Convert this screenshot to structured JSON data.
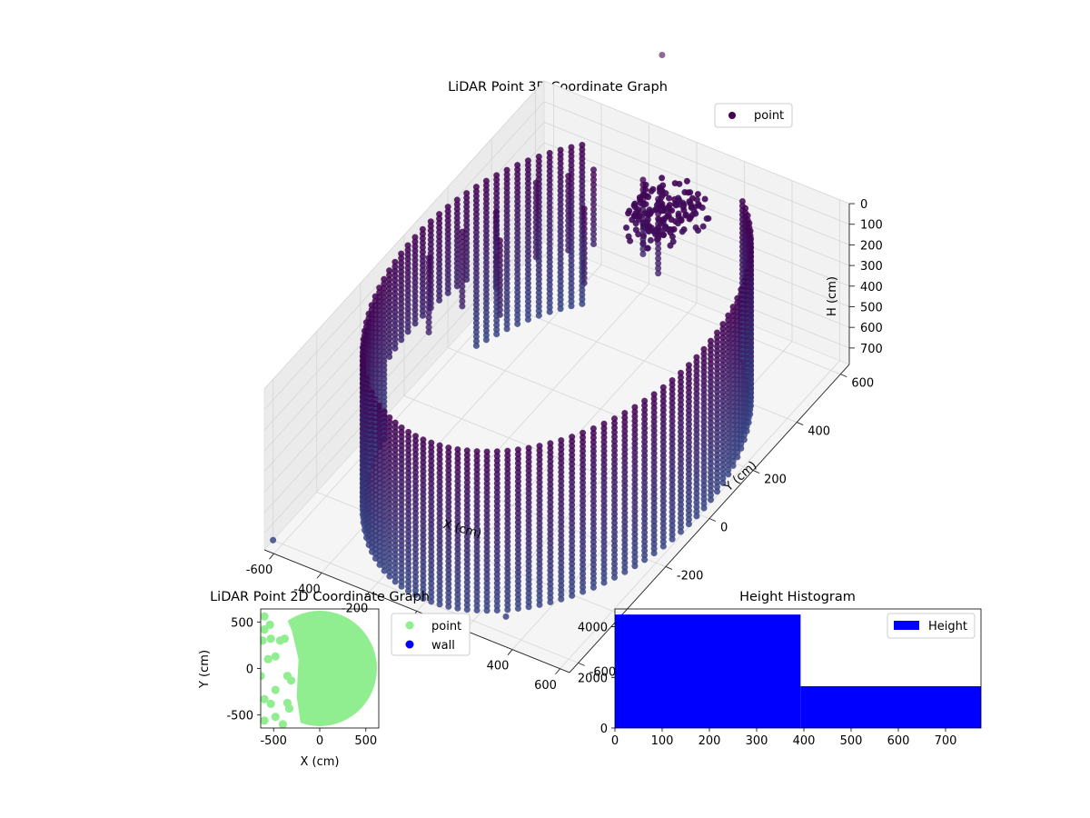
{
  "chart_data": [
    {
      "type": "scatter",
      "projection": "3d",
      "title": "LiDAR Point 3D Coordinate Graph",
      "xlabel": "X (cm)",
      "ylabel": "Y (cm)",
      "zlabel": "H (cm)",
      "x_ticks": [
        -600,
        -400,
        -200,
        0,
        200,
        400,
        600
      ],
      "y_ticks": [
        -600,
        -400,
        -200,
        0,
        200,
        400,
        600
      ],
      "z_ticks": [
        0,
        100,
        200,
        300,
        400,
        500,
        600,
        700
      ],
      "xlim": [
        -640,
        640
      ],
      "ylim": [
        -640,
        640
      ],
      "zlim": [
        780,
        0
      ],
      "z_inverted": true,
      "grid": true,
      "legend": {
        "position": "top-right",
        "entries": [
          "point"
        ]
      },
      "colormap": "viridis",
      "color_by": "z",
      "series": [
        {
          "name": "point",
          "shape": "cylinder wall of points",
          "radius": 600,
          "angle_range_deg": [
            -235,
            60
          ],
          "h_range": [
            0,
            770
          ]
        }
      ]
    },
    {
      "type": "scatter",
      "title": "LiDAR Point 2D Coordinate Graph",
      "xlabel": "X (cm)",
      "ylabel": "Y (cm)",
      "x_ticks": [
        -500,
        0,
        500
      ],
      "y_ticks": [
        -500,
        0,
        500
      ],
      "xlim": [
        -640,
        640
      ],
      "ylim": [
        -640,
        640
      ],
      "legend": {
        "position": "right",
        "entries": [
          "point",
          "wall"
        ]
      },
      "series": [
        {
          "name": "point",
          "color": "#90ee90",
          "radius": 620,
          "x_min": -640,
          "x_max": 620
        },
        {
          "name": "wall",
          "color": "#0000ff"
        }
      ]
    },
    {
      "type": "bar",
      "subtype": "histogram",
      "title": "Height Histogram",
      "x_ticks": [
        0,
        100,
        200,
        300,
        400,
        500,
        600,
        700
      ],
      "y_ticks": [
        0,
        2000,
        4000
      ],
      "xlim": [
        0,
        775
      ],
      "ylim": [
        0,
        4700
      ],
      "legend": {
        "position": "top-right",
        "entries": [
          "Height"
        ]
      },
      "series": [
        {
          "name": "Height",
          "color": "#0000ff",
          "bins": [
            {
              "start": 0,
              "end": 393,
              "count": 4480
            },
            {
              "start": 393,
              "end": 775,
              "count": 1650
            }
          ]
        }
      ]
    }
  ]
}
